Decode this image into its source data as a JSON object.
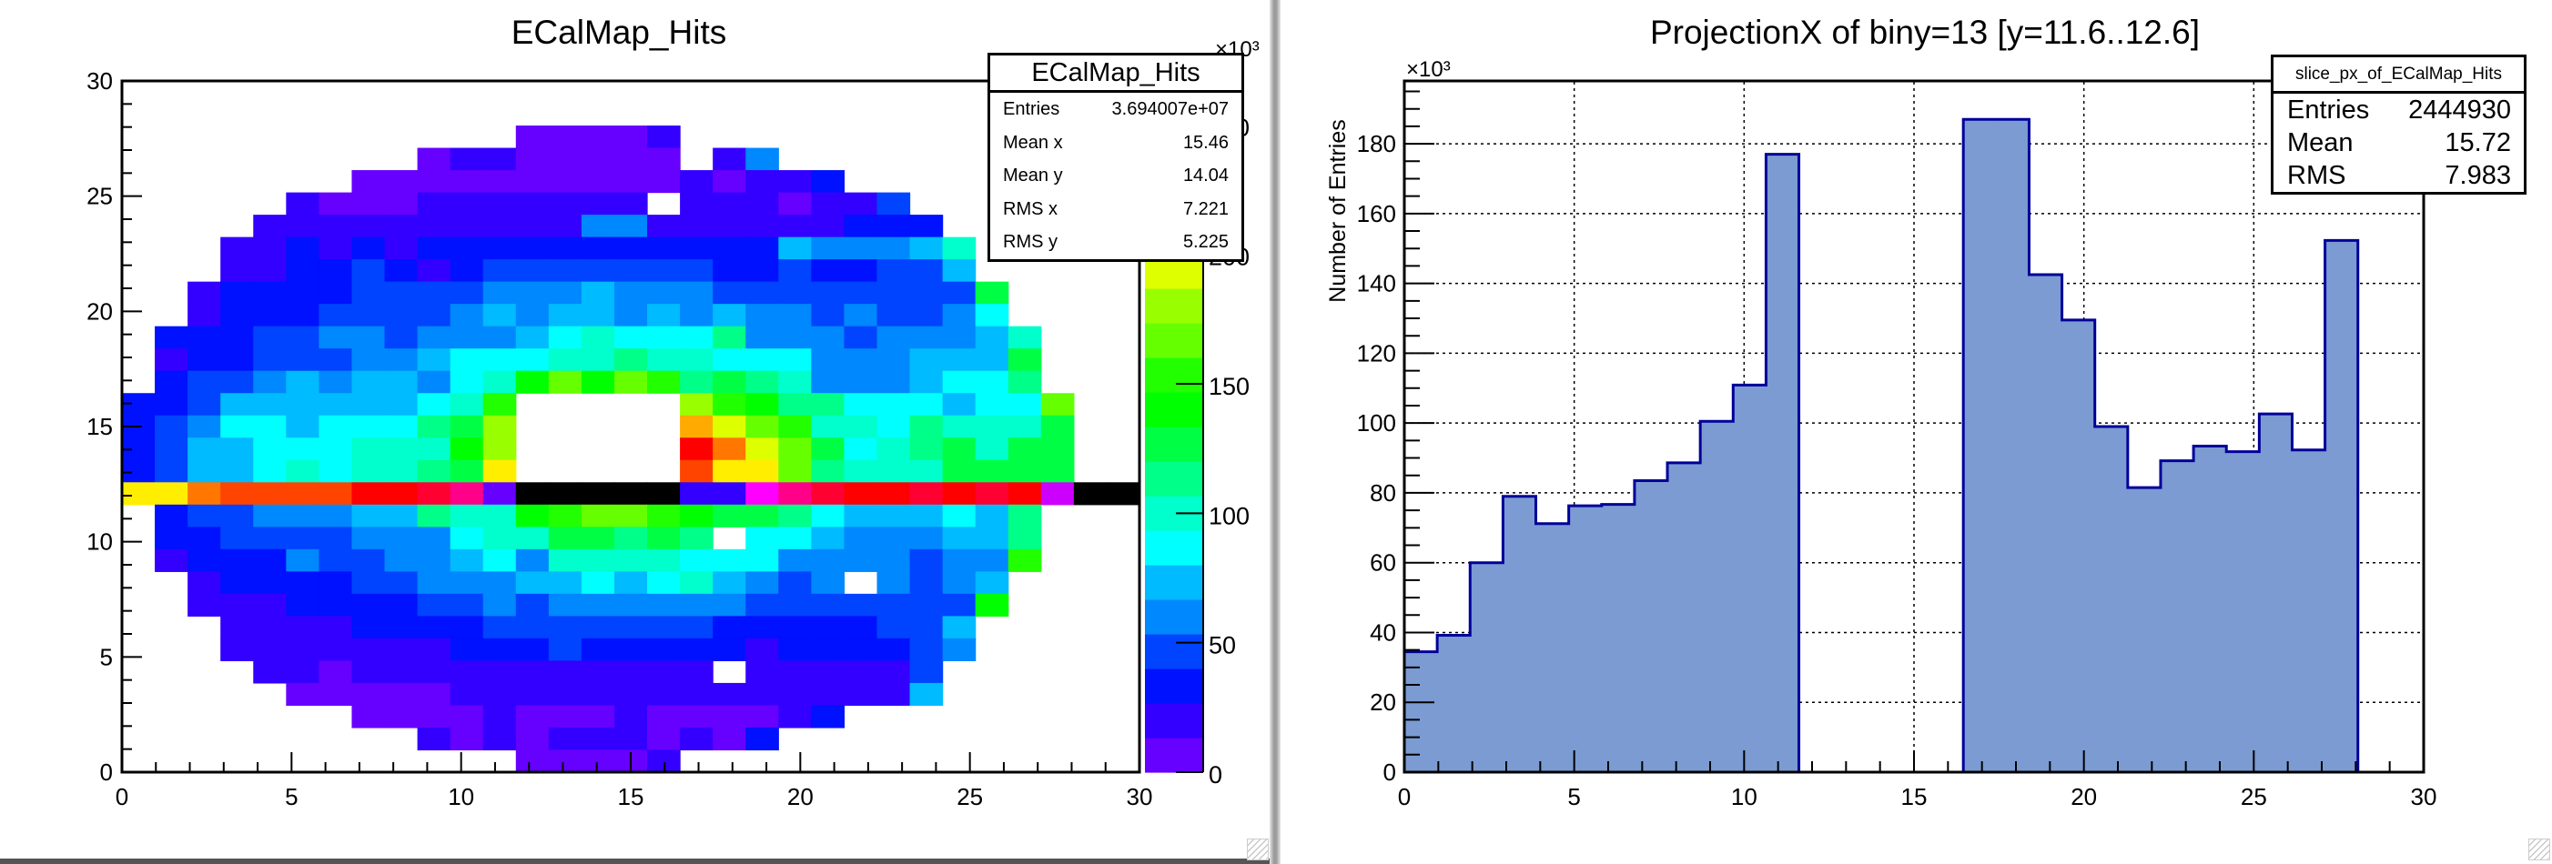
{
  "left_panel": {
    "title": "ECalMap_Hits",
    "stats": {
      "title": "ECalMap_Hits",
      "rows": [
        {
          "label": "Entries",
          "value": "3.694007e+07"
        },
        {
          "label": "Mean x",
          "value": "15.46"
        },
        {
          "label": "Mean y",
          "value": "14.04"
        },
        {
          "label": "RMS x",
          "value": "7.221"
        },
        {
          "label": "RMS y",
          "value": "5.225"
        }
      ]
    }
  },
  "right_panel": {
    "title": "ProjectionX of biny=13 [y=11.6..12.6]",
    "stats": {
      "title": "slice_px_of_ECalMap_Hits",
      "rows": [
        {
          "label": "Entries",
          "value": "2444930"
        },
        {
          "label": "Mean",
          "value": "15.72"
        },
        {
          "label": "RMS",
          "value": "7.983"
        }
      ]
    }
  },
  "chart_data": [
    {
      "type": "heatmap",
      "title": "ECalMap_Hits",
      "xlim": [
        0,
        30
      ],
      "ylim": [
        0,
        30
      ],
      "nbins_x": 31,
      "nbins_y": 31,
      "xticks": [
        "0",
        "5",
        "10",
        "15",
        "20",
        "25",
        "30"
      ],
      "yticks": [
        "0",
        "5",
        "10",
        "15",
        "20",
        "25",
        "30"
      ],
      "zlim": [
        0,
        267
      ],
      "zticks": [
        "0",
        "50",
        "100",
        "150",
        "200",
        "250"
      ],
      "z_exponent": "×10³",
      "palette_order": "abcdefghijklmnopqrst",
      "palette": {
        "a": "#6600ff",
        "b": "#3300ff",
        "c": "#0011ff",
        "d": "#0044ff",
        "e": "#0088ff",
        "f": "#00bbff",
        "g": "#00ffff",
        "h": "#00ffcc",
        "i": "#00ff88",
        "j": "#00ff44",
        "k": "#00ff00",
        "l": "#22ff00",
        "m": "#66ff00",
        "n": "#99ff00",
        "o": "#ddff00",
        "p": "#ffee00",
        "q": "#ffaa00",
        "r": "#ff7700",
        "s": "#ff4400",
        "t": "#ff0000",
        "u": "#ff0033",
        "v": "#ff0088",
        "w": "#ff00ff",
        "x": "#cc00ff",
        "K": "#000000"
      },
      "highlighted_row_biny": 13,
      "cells_rows_top_to_bottom": [
        "...............................",
        "...............................",
        "............aaaab..............",
        ".........abbaaaaa.be...........",
        ".......aaaaaaaaaababbc.........",
        ".....baaabbbbbbb.bbbabbd.......",
        "....bbbbbbbbbbeebbbbbbccc......",
        "...bbcbcbcccccccccccfeeefh.....",
        "...bbccdcbcdddddddccdccddf.....",
        "..bccccddddeeefeeeddddddddj....",
        "..bcccddddefeffefefeededdeg....",
        ".cccddeedeeefghgggieeedeeefh...",
        ".bccdddeefggghhihhgggeeefffj...",
        ".cddefeffeghkmkmlijiheeefggi...",
        "ccdffffffghl.....nlkiigggfggm..",
        "cdeggfgggijn.....qomlhhgihhhj..",
        "cdffggghhhkn.....tromjghijhjj..",
        "cdffghghhijp.....sppmihhhjjjj..",
        "pprssssttuvaKKKKKbbwvuttututxKK",
        ".cddeeeffihhklmmlkjjigfffgfi...",
        ".ccddddeeeghhjjiji.ggfeeeffi...",
        ".bccceddeefgehhhhgggeeeedeel...",
        "..bccccddeeeffgfghfede.edef....",
        "..bbbccccddedeeeeeedddddddk....",
        "...bbbbccccdddddddcccccddf.....",
        "...bbbbbbbcccdcccccbccccde.....",
        "....bbabbbbbbbbbbb.bbbbbd......",
        ".....aaaaabbbbbbbbbbbbbbf......",
        ".......aaaabaaabaaaabc.........",
        ".........bababbbabac...........",
        "............aaaab.............."
      ]
    },
    {
      "type": "bar",
      "title": "ProjectionX of biny=13 [y=11.6..12.6]",
      "xlabel": "",
      "ylabel": "Number of Entries",
      "y_exponent": "×10³",
      "xlim": [
        0,
        30
      ],
      "ylim": [
        0,
        198
      ],
      "nbins": 31,
      "values": [
        34.5,
        39.2,
        60.0,
        79.0,
        71.2,
        76.3,
        76.7,
        83.5,
        88.6,
        100.5,
        110.9,
        177.0,
        0,
        0,
        0,
        0,
        0,
        187.0,
        187.0,
        142.5,
        129.5,
        99.0,
        81.5,
        89.2,
        93.4,
        91.8,
        102.6,
        92.3,
        152.3,
        0,
        0
      ],
      "xticks": [
        "0",
        "5",
        "10",
        "15",
        "20",
        "25",
        "30"
      ],
      "yticks": [
        "0",
        "20",
        "40",
        "60",
        "80",
        "100",
        "120",
        "140",
        "160",
        "180"
      ],
      "grid": true,
      "fill_color": "#7b9bd2",
      "line_color": "#000099",
      "legend": "top-right"
    }
  ]
}
